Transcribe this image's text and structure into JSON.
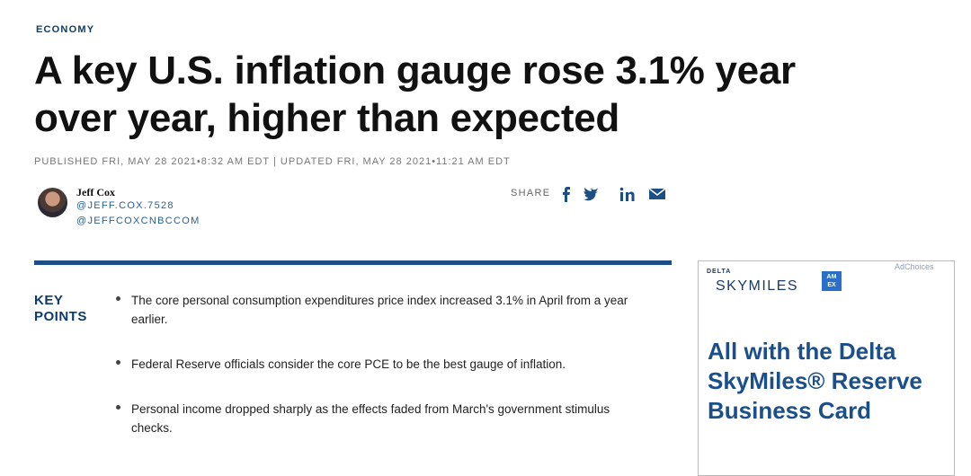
{
  "section": "ECONOMY",
  "headline": "A key U.S. inflation gauge rose 3.1% year over year, higher than expected",
  "dateline": "PUBLISHED FRI, MAY 28 2021•8:32 AM EDT | UPDATED FRI, MAY 28 2021•11:21 AM EDT",
  "author": {
    "name": "Jeff Cox",
    "handles": [
      "@JEFF.COX.7528",
      "@JEFFCOXCNBCCOM"
    ]
  },
  "share": {
    "label": "SHARE"
  },
  "key_points": {
    "label": "KEY POINTS",
    "items": [
      "The core personal consumption expenditures price index increased 3.1% in April from a year earlier.",
      "Federal Reserve officials consider the core PCE to be the best gauge of inflation.",
      "Personal income dropped sharply as the effects faded from March's government stimulus checks."
    ]
  },
  "ad": {
    "choices": "AdChoices",
    "brand_top": "DELTA",
    "brand": "SKYMILES",
    "card_logo": [
      "AM",
      "EX"
    ],
    "headline": "All with the Delta SkyMiles® Reserve Business Card"
  }
}
